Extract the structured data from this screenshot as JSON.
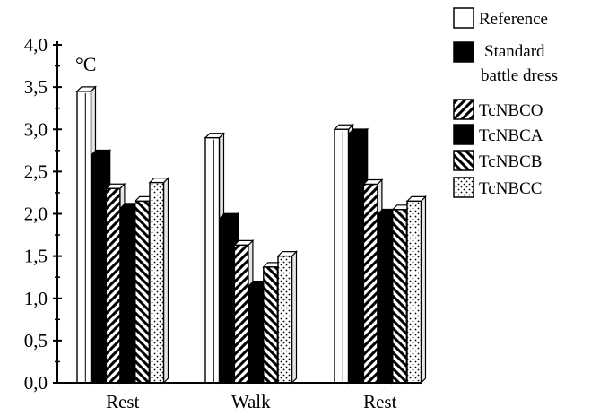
{
  "chart_data": {
    "type": "bar",
    "title": "",
    "xlabel": "",
    "ylabel": "°C",
    "ylim": [
      0,
      4.0
    ],
    "yticks": [
      "0,0",
      "0,5",
      "1,0",
      "1,5",
      "2,0",
      "2,5",
      "3,0",
      "3,5",
      "4,0"
    ],
    "categories": [
      "Rest",
      "Walk",
      "Rest"
    ],
    "legend_position": "top-right",
    "series": [
      {
        "name": "Reference",
        "pattern": "white",
        "values": [
          3.45,
          2.9,
          3.0
        ]
      },
      {
        "name": "Standard battle dress",
        "pattern": "black",
        "values": [
          2.7,
          1.95,
          2.95
        ]
      },
      {
        "name": "TcNBCO",
        "pattern": "diag-forward",
        "values": [
          2.3,
          1.63,
          2.35
        ]
      },
      {
        "name": "TcNBCA",
        "pattern": "black",
        "values": [
          2.07,
          1.15,
          2.0
        ]
      },
      {
        "name": "TcNBCB",
        "pattern": "diag-back",
        "values": [
          2.15,
          1.37,
          2.05
        ]
      },
      {
        "name": "TcNBCC",
        "pattern": "dots",
        "values": [
          2.37,
          1.5,
          2.15
        ]
      }
    ],
    "colors": {
      "ink": "#000000",
      "face": "#ffffff",
      "depth": "#e6e6e6"
    }
  }
}
